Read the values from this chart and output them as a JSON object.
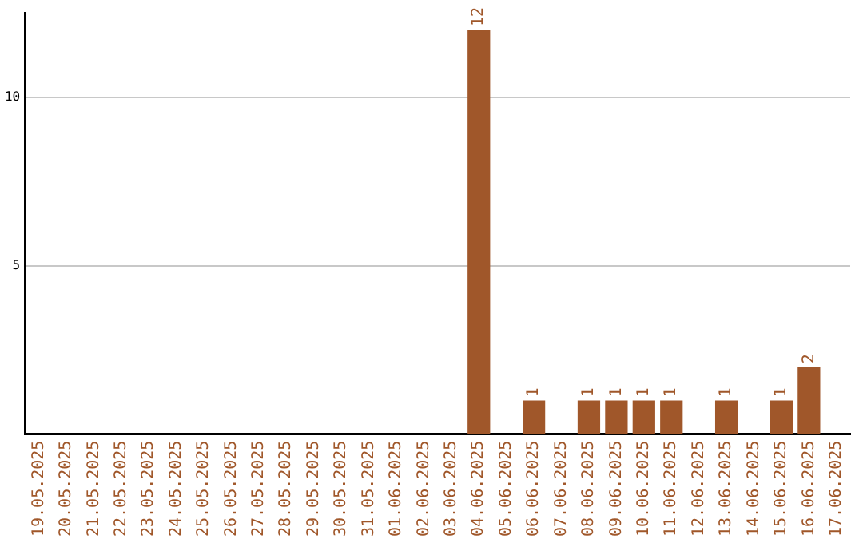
{
  "chart_data": {
    "type": "bar",
    "categories": [
      "19.05.2025",
      "20.05.2025",
      "21.05.2025",
      "22.05.2025",
      "23.05.2025",
      "24.05.2025",
      "25.05.2025",
      "26.05.2025",
      "27.05.2025",
      "28.05.2025",
      "29.05.2025",
      "30.05.2025",
      "31.05.2025",
      "01.06.2025",
      "02.06.2025",
      "03.06.2025",
      "04.06.2025",
      "05.06.2025",
      "06.06.2025",
      "07.06.2025",
      "08.06.2025",
      "09.06.2025",
      "10.06.2025",
      "11.06.2025",
      "12.06.2025",
      "13.06.2025",
      "14.06.2025",
      "15.06.2025",
      "16.06.2025",
      "17.06.2025"
    ],
    "values": [
      0,
      0,
      0,
      0,
      0,
      0,
      0,
      0,
      0,
      0,
      0,
      0,
      0,
      0,
      0,
      0,
      12,
      0,
      1,
      0,
      1,
      1,
      1,
      1,
      0,
      1,
      0,
      1,
      2,
      0
    ],
    "value_labels": [
      null,
      null,
      null,
      null,
      null,
      null,
      null,
      null,
      null,
      null,
      null,
      null,
      null,
      null,
      null,
      null,
      "12",
      null,
      "1",
      null,
      "1",
      "1",
      "1",
      "1",
      null,
      "1",
      null,
      "1",
      "2",
      null
    ],
    "color": "#a0572a",
    "ylim": [
      0,
      12.5
    ],
    "yticks": [
      5,
      10
    ],
    "grid": "y",
    "legend": false
  }
}
